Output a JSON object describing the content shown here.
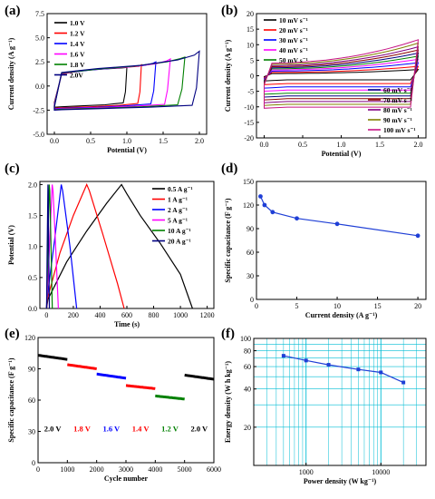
{
  "chart_data": [
    {
      "panel": "(a)",
      "type": "line",
      "xlabel": "Potential (V)",
      "ylabel": "Current density (A g⁻¹)",
      "xlim": [
        -0.1,
        2.1
      ],
      "ylim": [
        -5.0,
        7.5
      ],
      "xticks": [
        "0.0",
        "0.5",
        "1.0",
        "1.5",
        "2.0"
      ],
      "xtick_values": [
        0,
        0.5,
        1.0,
        1.5,
        2.0
      ],
      "yticks": [
        "-5.0",
        "-2.5",
        "0.0",
        "2.5",
        "5.0",
        "7.5"
      ],
      "ytick_values": [
        -5,
        -2.5,
        0,
        2.5,
        5,
        7.5
      ],
      "legend_position": "top-left",
      "series": [
        {
          "name": "1.0 V",
          "color": "#000000",
          "vmax": 1.0,
          "anodic": [
            [
              0,
              -1.7
            ],
            [
              0.1,
              1.2
            ],
            [
              0.3,
              1.55
            ],
            [
              0.6,
              1.75
            ],
            [
              0.9,
              1.85
            ],
            [
              0.97,
              1.9
            ],
            [
              1.0,
              1.95
            ]
          ],
          "cathodic": [
            [
              1.0,
              1.95
            ],
            [
              0.98,
              -0.6
            ],
            [
              0.95,
              -1.75
            ],
            [
              0.7,
              -1.95
            ],
            [
              0.4,
              -2.05
            ],
            [
              0.1,
              -2.15
            ],
            [
              0,
              -2.2
            ]
          ]
        },
        {
          "name": "1.2 V",
          "color": "#ff0000",
          "vmax": 1.2,
          "anodic": [
            [
              0,
              -1.8
            ],
            [
              0.1,
              1.25
            ],
            [
              0.4,
              1.6
            ],
            [
              0.8,
              1.85
            ],
            [
              1.1,
              2.0
            ],
            [
              1.17,
              2.05
            ],
            [
              1.2,
              2.2
            ]
          ],
          "cathodic": [
            [
              1.2,
              2.2
            ],
            [
              1.18,
              -0.6
            ],
            [
              1.15,
              -1.8
            ],
            [
              0.9,
              -2.0
            ],
            [
              0.5,
              -2.15
            ],
            [
              0.1,
              -2.25
            ],
            [
              0,
              -2.3
            ]
          ]
        },
        {
          "name": "1.4 V",
          "color": "#0000ff",
          "vmax": 1.4,
          "anodic": [
            [
              0,
              -1.9
            ],
            [
              0.1,
              1.3
            ],
            [
              0.5,
              1.65
            ],
            [
              0.9,
              1.9
            ],
            [
              1.25,
              2.15
            ],
            [
              1.36,
              2.35
            ],
            [
              1.4,
              2.5
            ]
          ],
          "cathodic": [
            [
              1.4,
              2.5
            ],
            [
              1.37,
              -0.5
            ],
            [
              1.33,
              -1.85
            ],
            [
              1.0,
              -2.05
            ],
            [
              0.6,
              -2.2
            ],
            [
              0.1,
              -2.3
            ],
            [
              0,
              -2.35
            ]
          ]
        },
        {
          "name": "1.6 V",
          "color": "#ff00ff",
          "vmax": 1.6,
          "anodic": [
            [
              0,
              -2.0
            ],
            [
              0.1,
              1.3
            ],
            [
              0.5,
              1.7
            ],
            [
              1.0,
              1.95
            ],
            [
              1.4,
              2.3
            ],
            [
              1.55,
              2.6
            ],
            [
              1.6,
              2.8
            ]
          ],
          "cathodic": [
            [
              1.6,
              2.8
            ],
            [
              1.56,
              -0.4
            ],
            [
              1.52,
              -1.9
            ],
            [
              1.1,
              -2.1
            ],
            [
              0.6,
              -2.25
            ],
            [
              0.1,
              -2.35
            ],
            [
              0,
              -2.4
            ]
          ]
        },
        {
          "name": "1.8 V",
          "color": "#008000",
          "vmax": 1.8,
          "anodic": [
            [
              0,
              -2.1
            ],
            [
              0.1,
              1.35
            ],
            [
              0.6,
              1.75
            ],
            [
              1.1,
              2.05
            ],
            [
              1.55,
              2.5
            ],
            [
              1.74,
              2.85
            ],
            [
              1.8,
              3.0
            ]
          ],
          "cathodic": [
            [
              1.8,
              3.0
            ],
            [
              1.76,
              -0.3
            ],
            [
              1.7,
              -1.95
            ],
            [
              1.2,
              -2.15
            ],
            [
              0.6,
              -2.3
            ],
            [
              0.1,
              -2.4
            ],
            [
              0,
              -2.45
            ]
          ]
        },
        {
          "name": "2.0V",
          "color": "#000080",
          "vmax": 2.0,
          "anodic": [
            [
              0,
              -2.2
            ],
            [
              0.1,
              1.4
            ],
            [
              0.6,
              1.8
            ],
            [
              1.2,
              2.15
            ],
            [
              1.7,
              2.7
            ],
            [
              1.93,
              3.2
            ],
            [
              2.0,
              3.6
            ]
          ],
          "cathodic": [
            [
              2.0,
              3.6
            ],
            [
              1.96,
              -0.2
            ],
            [
              1.9,
              -2.0
            ],
            [
              1.3,
              -2.2
            ],
            [
              0.6,
              -2.35
            ],
            [
              0.1,
              -2.45
            ],
            [
              0,
              -2.5
            ]
          ]
        }
      ]
    },
    {
      "panel": "(b)",
      "type": "line",
      "xlabel": "Potential (V)",
      "ylabel": "Current density (A g⁻¹)",
      "xlim": [
        -0.1,
        2.1
      ],
      "ylim": [
        -20,
        20
      ],
      "xticks": [
        "0.0",
        "0.5",
        "1.0",
        "1.5",
        "2.0"
      ],
      "xtick_values": [
        0,
        0.5,
        1.0,
        1.5,
        2.0
      ],
      "yticks": [
        "-20",
        "-15",
        "-10",
        "-5",
        "0",
        "5",
        "10",
        "15",
        "20"
      ],
      "ytick_values": [
        -20,
        -15,
        -10,
        -5,
        0,
        5,
        10,
        15,
        20
      ],
      "legend_position": "top-left and bottom-right",
      "series": [
        {
          "name": "10 mV s⁻¹",
          "color": "#000000",
          "upper_start": -0.3,
          "upper_end": 2.0,
          "lower_end": -1.3
        },
        {
          "name": "20 mV s⁻¹",
          "color": "#ff0000",
          "upper_start": -0.6,
          "upper_end": 3.0,
          "lower_end": -2.5
        },
        {
          "name": "30 mV s⁻¹",
          "color": "#0000ff",
          "upper_start": -0.9,
          "upper_end": 4.2,
          "lower_end": -3.6
        },
        {
          "name": "40 mV s⁻¹",
          "color": "#ff00ff",
          "upper_start": -1.2,
          "upper_end": 5.3,
          "lower_end": -4.6
        },
        {
          "name": "50 mV s⁻¹",
          "color": "#008000",
          "upper_start": -1.5,
          "upper_end": 6.3,
          "lower_end": -5.6
        },
        {
          "name": "60 mV s⁻¹",
          "color": "#000080",
          "upper_start": -1.8,
          "upper_end": 7.3,
          "lower_end": -6.5
        },
        {
          "name": "70 mV s⁻¹",
          "color": "#8b0000",
          "upper_start": -2.1,
          "upper_end": 8.3,
          "lower_end": -7.4
        },
        {
          "name": "80 mV s⁻¹",
          "color": "#800080",
          "upper_start": -2.4,
          "upper_end": 9.3,
          "lower_end": -8.3
        },
        {
          "name": "90 mV s⁻¹",
          "color": "#808000",
          "upper_start": -2.7,
          "upper_end": 10.5,
          "lower_end": -9.2
        },
        {
          "name": "100 mV s⁻¹",
          "color": "#c71585",
          "upper_start": -3.0,
          "upper_end": 11.6,
          "lower_end": -10.1
        }
      ]
    },
    {
      "panel": "(c)",
      "type": "line",
      "xlabel": "Time (s)",
      "ylabel": "Potential (V)",
      "xlim": [
        -50,
        1250
      ],
      "ylim": [
        0,
        2.05
      ],
      "xticks": [
        "0",
        "200",
        "400",
        "600",
        "800",
        "1000",
        "1200"
      ],
      "xtick_values": [
        0,
        200,
        400,
        600,
        800,
        1000,
        1200
      ],
      "yticks": [
        "0.0",
        "0.5",
        "1.0",
        "1.5",
        "2.0"
      ],
      "ytick_values": [
        0,
        0.5,
        1.0,
        1.5,
        2.0
      ],
      "legend_position": "top-right",
      "series": [
        {
          "name": "0.5 A g⁻¹",
          "color": "#000000",
          "points": [
            [
              0,
              0
            ],
            [
              10,
              0.15
            ],
            [
              150,
              0.75
            ],
            [
              300,
              1.25
            ],
            [
              450,
              1.7
            ],
            [
              560,
              2.0
            ],
            [
              600,
              1.85
            ],
            [
              700,
              1.5
            ],
            [
              850,
              1.05
            ],
            [
              1000,
              0.55
            ],
            [
              1090,
              0
            ]
          ]
        },
        {
          "name": "1 A g⁻¹",
          "color": "#ff0000",
          "points": [
            [
              0,
              0
            ],
            [
              5,
              0.15
            ],
            [
              100,
              0.9
            ],
            [
              200,
              1.5
            ],
            [
              300,
              2.0
            ],
            [
              320,
              1.9
            ],
            [
              420,
              1.2
            ],
            [
              530,
              0.4
            ],
            [
              580,
              0
            ]
          ]
        },
        {
          "name": "2 A g⁻¹",
          "color": "#0000ff",
          "points": [
            [
              0,
              0
            ],
            [
              3,
              0.15
            ],
            [
              60,
              1.1
            ],
            [
              110,
              2.0
            ],
            [
              120,
              1.9
            ],
            [
              175,
              1.0
            ],
            [
              225,
              0
            ]
          ]
        },
        {
          "name": "5 A g⁻¹",
          "color": "#ff00ff",
          "points": [
            [
              0,
              0
            ],
            [
              22,
              1.0
            ],
            [
              42,
              2.0
            ],
            [
              48,
              1.9
            ],
            [
              68,
              1.0
            ],
            [
              88,
              0
            ]
          ]
        },
        {
          "name": "10 A g⁻¹",
          "color": "#008000",
          "points": [
            [
              0,
              0
            ],
            [
              10,
              1.0
            ],
            [
              20,
              2.0
            ],
            [
              24,
              1.9
            ],
            [
              33,
              1.0
            ],
            [
              43,
              0
            ]
          ]
        },
        {
          "name": "20 A g⁻¹",
          "color": "#000080",
          "points": [
            [
              0,
              0
            ],
            [
              5,
              1.0
            ],
            [
              10,
              2.0
            ],
            [
              12,
              1.9
            ],
            [
              16,
              1.0
            ],
            [
              21,
              0
            ]
          ]
        }
      ]
    },
    {
      "panel": "(d)",
      "type": "line",
      "xlabel": "Current density (A g⁻¹)",
      "ylabel": "Specific capacitance (F g⁻¹)",
      "xlim": [
        0,
        21
      ],
      "ylim": [
        0,
        150
      ],
      "xticks": [
        "0",
        "5",
        "10",
        "15",
        "20"
      ],
      "xtick_values": [
        0,
        5,
        10,
        15,
        20
      ],
      "yticks": [
        "0",
        "30",
        "60",
        "90",
        "120",
        "150"
      ],
      "ytick_values": [
        0,
        30,
        60,
        90,
        120,
        150
      ],
      "series": [
        {
          "color": "#1f3fd6",
          "x": [
            0.5,
            1,
            2,
            5,
            10,
            20
          ],
          "y": [
            131,
            120,
            111,
            103,
            96,
            81
          ]
        }
      ]
    },
    {
      "panel": "(e)",
      "type": "line",
      "xlabel": "Cycle number",
      "ylabel": "Specific capacitance (F g⁻¹)",
      "xlim": [
        0,
        6000
      ],
      "ylim": [
        0,
        120
      ],
      "xticks": [
        "0",
        "1000",
        "2000",
        "3000",
        "4000",
        "5000",
        "6000"
      ],
      "xtick_values": [
        0,
        1000,
        2000,
        3000,
        4000,
        5000,
        6000
      ],
      "yticks": [
        "0",
        "30",
        "60",
        "90",
        "120"
      ],
      "ytick_values": [
        0,
        30,
        60,
        90,
        120
      ],
      "series": [
        {
          "name": "2.0 V",
          "color": "#000000",
          "x_range": [
            0,
            1000
          ],
          "y_start": 103,
          "y_end": 99,
          "annotation_x": 500,
          "annotation_y": 30
        },
        {
          "name": "1.8 V",
          "color": "#ff0000",
          "x_range": [
            1000,
            2000
          ],
          "y_start": 94,
          "y_end": 90,
          "annotation_x": 1500,
          "annotation_y": 30
        },
        {
          "name": "1.6 V",
          "color": "#0000ff",
          "x_range": [
            2000,
            3000
          ],
          "y_start": 85,
          "y_end": 81,
          "annotation_x": 2500,
          "annotation_y": 30
        },
        {
          "name": "1.4 V",
          "color": "#ff0000",
          "x_range": [
            3000,
            4000
          ],
          "y_start": 74,
          "y_end": 71,
          "annotation_x": 3500,
          "annotation_y": 30
        },
        {
          "name": "1.2 V",
          "color": "#008000",
          "x_range": [
            4000,
            5000
          ],
          "y_start": 64,
          "y_end": 61,
          "annotation_x": 4500,
          "annotation_y": 30
        },
        {
          "name": "2.0 V",
          "color": "#000000",
          "x_range": [
            5000,
            6000
          ],
          "y_start": 84,
          "y_end": 80,
          "annotation_x": 5500,
          "annotation_y": 30
        }
      ]
    },
    {
      "panel": "(f)",
      "type": "line",
      "xscale": "log",
      "yscale": "log",
      "xlabel": "Power density (W kg⁻¹)",
      "ylabel": "Energy density (W h kg⁻¹)",
      "xlim": [
        200,
        40000
      ],
      "ylim": [
        10,
        100
      ],
      "xticks": [
        "1000",
        "10000"
      ],
      "xtick_values": [
        1000,
        10000
      ],
      "yticks": [
        "20",
        "40",
        "60",
        "80",
        "100"
      ],
      "ytick_values": [
        20,
        40,
        60,
        80,
        100
      ],
      "grid": true,
      "grid_color": "#00bcd4",
      "series": [
        {
          "color": "#1f3fd6",
          "x": [
            500,
            1000,
            2000,
            5000,
            10000,
            20000
          ],
          "y": [
            73,
            67,
            62,
            57,
            54,
            45
          ]
        }
      ]
    }
  ]
}
